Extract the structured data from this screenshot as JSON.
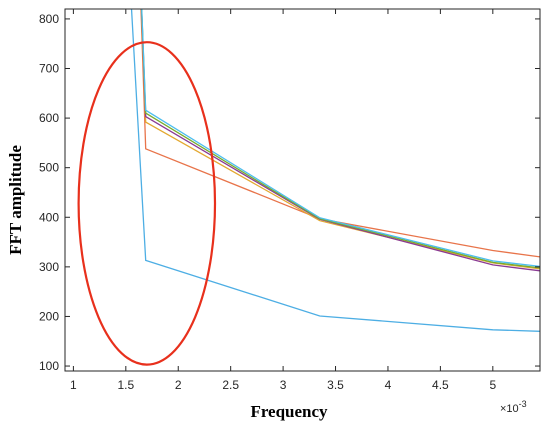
{
  "chart_data": {
    "type": "line",
    "title": "",
    "xlabel": "Frequency",
    "ylabel": "FFT amplitude",
    "x_multiplier_label": "×10",
    "x_multiplier_exp": "-3",
    "xlim": [
      0.92,
      5.45
    ],
    "ylim": [
      90,
      820
    ],
    "grid": false,
    "legend": "none",
    "x_ticks": [
      1,
      1.5,
      2,
      2.5,
      3,
      3.5,
      4,
      4.5,
      5
    ],
    "x_tick_labels": [
      "1",
      "1.5",
      "2",
      "2.5",
      "3",
      "3.5",
      "4",
      "4.5",
      "5"
    ],
    "y_ticks": [
      100,
      200,
      300,
      400,
      500,
      600,
      700,
      800
    ],
    "y_tick_labels": [
      "100",
      "200",
      "300",
      "400",
      "500",
      "600",
      "700",
      "800"
    ],
    "series": [
      {
        "color": "#4daee4",
        "x": [
          1.48,
          1.69,
          3.35,
          5.0,
          5.45
        ],
        "y": [
          1100,
          313,
          201,
          173,
          170
        ]
      },
      {
        "color": "#e8744a",
        "x": [
          1.6,
          1.69,
          3.35,
          5.0,
          5.45
        ],
        "y": [
          1100,
          538,
          397,
          333,
          320
        ]
      },
      {
        "color": "#e3a830",
        "x": [
          1.6,
          1.69,
          3.35,
          5.0,
          5.45
        ],
        "y": [
          1100,
          592,
          393,
          308,
          296
        ]
      },
      {
        "color": "#8a3a93",
        "x": [
          1.6,
          1.69,
          3.35,
          5.0,
          5.45
        ],
        "y": [
          1100,
          603,
          396,
          304,
          292
        ]
      },
      {
        "color": "#77ac30",
        "x": [
          1.6,
          1.69,
          3.35,
          5.0,
          5.45
        ],
        "y": [
          1100,
          610,
          397,
          309,
          298
        ]
      },
      {
        "color": "#4dbeee",
        "x": [
          1.6,
          1.69,
          3.35,
          5.0,
          5.45
        ],
        "y": [
          1100,
          616,
          399,
          312,
          301
        ]
      }
    ],
    "annotations": [
      {
        "type": "ellipse",
        "color": "#e8301c",
        "cx": 1.7,
        "cy": 428,
        "rx": 0.65,
        "ry": 325
      }
    ]
  }
}
